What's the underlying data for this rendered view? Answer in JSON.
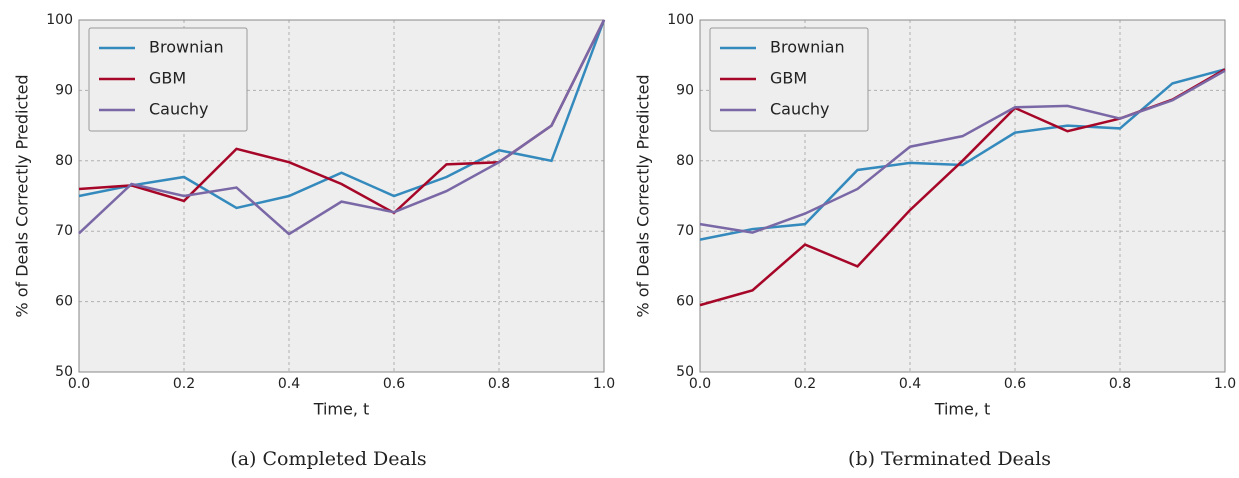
{
  "chart_data": [
    {
      "type": "line",
      "caption": "(a) Completed Deals",
      "xlabel": "Time, t",
      "ylabel": "% of Deals Correctly Predicted",
      "x": [
        0,
        0.1,
        0.2,
        0.3,
        0.4,
        0.5,
        0.6,
        0.7,
        0.8,
        0.9,
        1
      ],
      "series": [
        {
          "name": "Brownian",
          "color": "#348abd",
          "values": [
            75,
            76.5,
            77.7,
            73.3,
            75,
            78.3,
            75,
            77.7,
            81.5,
            80,
            100
          ]
        },
        {
          "name": "GBM",
          "color": "#a60628",
          "values": [
            76,
            76.5,
            74.3,
            81.7,
            79.8,
            76.7,
            72.6,
            79.5,
            79.8,
            85,
            100
          ]
        },
        {
          "name": "Cauchy",
          "color": "#7a68a6",
          "values": [
            69.7,
            76.7,
            75,
            76.2,
            69.6,
            74.2,
            72.7,
            75.7,
            79.8,
            85,
            100
          ]
        }
      ],
      "xlim": [
        0,
        1
      ],
      "ylim": [
        50,
        100
      ],
      "xticks": [
        {
          "value": 0,
          "label": "0.0"
        },
        0.2,
        0.4,
        0.6,
        0.8,
        {
          "value": 1,
          "label": "1.0"
        }
      ],
      "yticks": [
        50,
        60,
        70,
        80,
        90,
        100
      ],
      "grid": true,
      "legend": "upper left"
    },
    {
      "type": "line",
      "caption": "(b) Terminated Deals",
      "xlabel": "Time, t",
      "ylabel": "% of Deals Correctly Predicted",
      "x": [
        0,
        0.1,
        0.2,
        0.3,
        0.4,
        0.5,
        0.6,
        0.7,
        0.8,
        0.9,
        1
      ],
      "series": [
        {
          "name": "Brownian",
          "color": "#348abd",
          "values": [
            68.8,
            70.3,
            71,
            78.7,
            79.7,
            79.4,
            84,
            85,
            84.6,
            91,
            93
          ]
        },
        {
          "name": "GBM",
          "color": "#a60628",
          "values": [
            59.5,
            61.6,
            68.1,
            65,
            73,
            80,
            87.5,
            84.2,
            86,
            88.7,
            93
          ]
        },
        {
          "name": "Cauchy",
          "color": "#7a68a6",
          "values": [
            71,
            69.8,
            72.5,
            76,
            82,
            83.5,
            87.6,
            87.8,
            86,
            88.6,
            92.8
          ]
        }
      ],
      "xlim": [
        0,
        1
      ],
      "ylim": [
        50,
        100
      ],
      "xticks": [
        {
          "value": 0,
          "label": "0.0"
        },
        0.2,
        0.4,
        0.6,
        0.8,
        {
          "value": 1,
          "label": "1.0"
        }
      ],
      "yticks": [
        50,
        60,
        70,
        80,
        90,
        100
      ],
      "grid": true,
      "legend": "upper left"
    }
  ]
}
